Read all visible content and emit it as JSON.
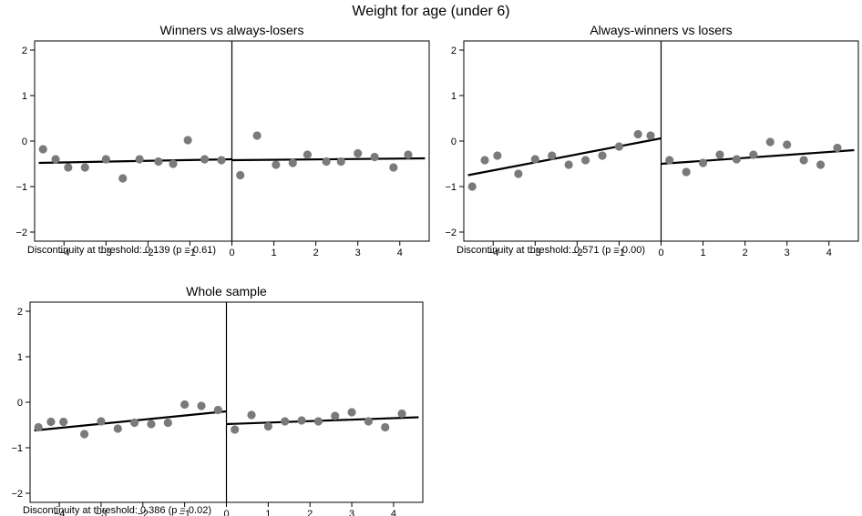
{
  "figure_title": "Weight for age (under 6)",
  "chart_data": [
    {
      "type": "scatter",
      "title": "Winners vs always-losers",
      "note": "Discontinuity at threshold: 0.139 (p = 0.61)",
      "xlim": [
        -4.7,
        4.7
      ],
      "ylim": [
        -2.2,
        2.2
      ],
      "xticks": [
        -4,
        -3,
        -2,
        -1,
        0,
        1,
        2,
        3,
        4
      ],
      "xticklabels": [
        "−4",
        "−3",
        "−2",
        "−1",
        "0",
        "1",
        "2",
        "3",
        "4"
      ],
      "yticks": [
        -2,
        -1,
        0,
        1,
        2
      ],
      "yticklabels": [
        "−2",
        "−1",
        "0",
        "1",
        "2"
      ],
      "threshold_x": 0,
      "grid": false,
      "points": [
        {
          "x": -4.5,
          "y": -0.18
        },
        {
          "x": -4.2,
          "y": -0.4
        },
        {
          "x": -3.9,
          "y": -0.58
        },
        {
          "x": -3.5,
          "y": -0.58
        },
        {
          "x": -3.0,
          "y": -0.4
        },
        {
          "x": -2.6,
          "y": -0.82
        },
        {
          "x": -2.2,
          "y": -0.4
        },
        {
          "x": -1.75,
          "y": -0.45
        },
        {
          "x": -1.4,
          "y": -0.5
        },
        {
          "x": -1.05,
          "y": 0.02
        },
        {
          "x": -0.65,
          "y": -0.4
        },
        {
          "x": -0.25,
          "y": -0.42
        },
        {
          "x": 0.2,
          "y": -0.75
        },
        {
          "x": 0.6,
          "y": 0.12
        },
        {
          "x": 1.05,
          "y": -0.52
        },
        {
          "x": 1.45,
          "y": -0.48
        },
        {
          "x": 1.8,
          "y": -0.3
        },
        {
          "x": 2.25,
          "y": -0.45
        },
        {
          "x": 2.6,
          "y": -0.45
        },
        {
          "x": 3.0,
          "y": -0.27
        },
        {
          "x": 3.4,
          "y": -0.35
        },
        {
          "x": 3.85,
          "y": -0.58
        },
        {
          "x": 4.2,
          "y": -0.3
        }
      ],
      "fit_lines": [
        {
          "x": [
            -4.6,
            0
          ],
          "y": [
            -0.48,
            -0.4
          ]
        },
        {
          "x": [
            0,
            4.6
          ],
          "y": [
            -0.42,
            -0.38
          ]
        }
      ]
    },
    {
      "type": "scatter",
      "title": "Always-winners vs losers",
      "note": "Discontinuity at threshold: 0.571 (p = 0.00)",
      "xlim": [
        -4.7,
        4.7
      ],
      "ylim": [
        -2.2,
        2.2
      ],
      "xticks": [
        -4,
        -3,
        -2,
        -1,
        0,
        1,
        2,
        3,
        4
      ],
      "xticklabels": [
        "−4",
        "−3",
        "−2",
        "−1",
        "0",
        "1",
        "2",
        "3",
        "4"
      ],
      "yticks": [
        -2,
        -1,
        0,
        1,
        2
      ],
      "yticklabels": [
        "−2",
        "−1",
        "0",
        "1",
        "2"
      ],
      "threshold_x": 0,
      "grid": false,
      "points": [
        {
          "x": -4.5,
          "y": -1.0
        },
        {
          "x": -4.2,
          "y": -0.42
        },
        {
          "x": -3.9,
          "y": -0.32
        },
        {
          "x": -3.4,
          "y": -0.72
        },
        {
          "x": -3.0,
          "y": -0.4
        },
        {
          "x": -2.6,
          "y": -0.32
        },
        {
          "x": -2.2,
          "y": -0.52
        },
        {
          "x": -1.8,
          "y": -0.42
        },
        {
          "x": -1.4,
          "y": -0.32
        },
        {
          "x": -1.0,
          "y": -0.12
        },
        {
          "x": -0.55,
          "y": 0.15
        },
        {
          "x": -0.25,
          "y": 0.12
        },
        {
          "x": 0.2,
          "y": -0.42
        },
        {
          "x": 0.6,
          "y": -0.68
        },
        {
          "x": 1.0,
          "y": -0.48
        },
        {
          "x": 1.4,
          "y": -0.3
        },
        {
          "x": 1.8,
          "y": -0.4
        },
        {
          "x": 2.2,
          "y": -0.3
        },
        {
          "x": 2.6,
          "y": -0.02
        },
        {
          "x": 3.0,
          "y": -0.08
        },
        {
          "x": 3.4,
          "y": -0.42
        },
        {
          "x": 3.8,
          "y": -0.52
        },
        {
          "x": 4.2,
          "y": -0.15
        }
      ],
      "fit_lines": [
        {
          "x": [
            -4.6,
            0
          ],
          "y": [
            -0.75,
            0.06
          ]
        },
        {
          "x": [
            0,
            4.6
          ],
          "y": [
            -0.5,
            -0.2
          ]
        }
      ]
    },
    {
      "type": "scatter",
      "title": "Whole sample",
      "note": "Discontinuity at threshold: 0.386 (p = 0.02)",
      "xlim": [
        -4.7,
        4.7
      ],
      "ylim": [
        -2.2,
        2.2
      ],
      "xticks": [
        -4,
        -3,
        -2,
        -1,
        0,
        1,
        2,
        3,
        4
      ],
      "xticklabels": [
        "−4",
        "−3",
        "−2",
        "−1",
        "0",
        "1",
        "2",
        "3",
        "4"
      ],
      "yticks": [
        -2,
        -1,
        0,
        1,
        2
      ],
      "yticklabels": [
        "−2",
        "−1",
        "0",
        "1",
        "2"
      ],
      "threshold_x": 0,
      "grid": false,
      "points": [
        {
          "x": -4.5,
          "y": -0.55
        },
        {
          "x": -4.2,
          "y": -0.43
        },
        {
          "x": -3.9,
          "y": -0.43
        },
        {
          "x": -3.4,
          "y": -0.7
        },
        {
          "x": -3.0,
          "y": -0.42
        },
        {
          "x": -2.6,
          "y": -0.58
        },
        {
          "x": -2.2,
          "y": -0.45
        },
        {
          "x": -1.8,
          "y": -0.48
        },
        {
          "x": -1.4,
          "y": -0.45
        },
        {
          "x": -1.0,
          "y": -0.05
        },
        {
          "x": -0.6,
          "y": -0.08
        },
        {
          "x": -0.2,
          "y": -0.17
        },
        {
          "x": 0.2,
          "y": -0.6
        },
        {
          "x": 0.6,
          "y": -0.28
        },
        {
          "x": 1.0,
          "y": -0.53
        },
        {
          "x": 1.4,
          "y": -0.42
        },
        {
          "x": 1.8,
          "y": -0.4
        },
        {
          "x": 2.2,
          "y": -0.42
        },
        {
          "x": 2.6,
          "y": -0.3
        },
        {
          "x": 3.0,
          "y": -0.22
        },
        {
          "x": 3.4,
          "y": -0.42
        },
        {
          "x": 3.8,
          "y": -0.55
        },
        {
          "x": 4.2,
          "y": -0.25
        }
      ],
      "fit_lines": [
        {
          "x": [
            -4.6,
            0
          ],
          "y": [
            -0.62,
            -0.2
          ]
        },
        {
          "x": [
            0,
            4.6
          ],
          "y": [
            -0.48,
            -0.33
          ]
        }
      ]
    }
  ]
}
